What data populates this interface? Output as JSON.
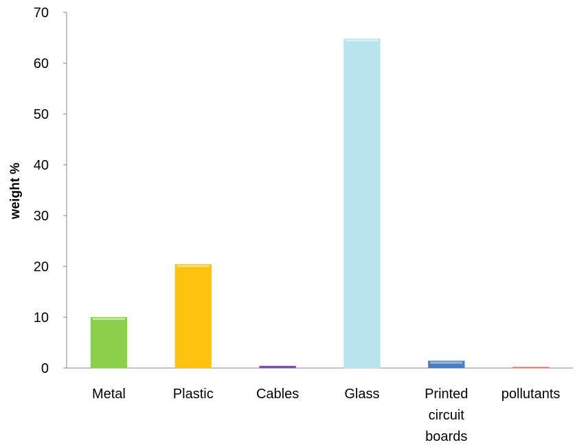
{
  "chart_data": {
    "type": "bar",
    "title": "",
    "xlabel": "",
    "ylabel": "weight %",
    "ylim": [
      0,
      70
    ],
    "yticks": [
      0,
      10,
      20,
      30,
      40,
      50,
      60,
      70
    ],
    "grid": false,
    "legend": "none",
    "categories": [
      {
        "label": "Metal",
        "lines": [
          "Metal"
        ]
      },
      {
        "label": "Plastic",
        "lines": [
          "Plastic"
        ]
      },
      {
        "label": "Cables",
        "lines": [
          "Cables"
        ]
      },
      {
        "label": "Glass",
        "lines": [
          "Glass"
        ]
      },
      {
        "label": "Printed circuit boards",
        "lines": [
          "Printed",
          "circuit",
          "boards"
        ]
      },
      {
        "label": "pollutants",
        "lines": [
          "pollutants"
        ]
      }
    ],
    "values": [
      10,
      20.4,
      0.4,
      64.8,
      1.4,
      0.1
    ],
    "colors": [
      "#8ccf4a",
      "#ffc20e",
      "#7a4fb0",
      "#b7e2ee",
      "#4a7ec3",
      "#e87878"
    ]
  }
}
